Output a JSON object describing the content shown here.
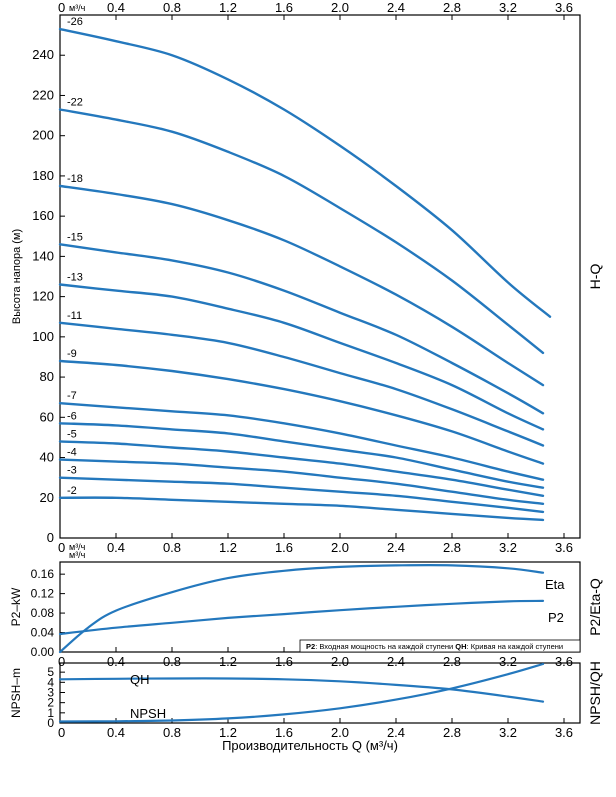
{
  "chart_data": [
    {
      "type": "line",
      "panel": "H-Q",
      "side_label": "H-Q",
      "ylabel": "Высота напора (м)",
      "x_unit_label": "м³/ч",
      "xticks": [
        "0",
        "0.4",
        "0.8",
        "1.2",
        "1.6",
        "2.0",
        "2.4",
        "2.8",
        "3.2",
        "3.6"
      ],
      "yticks": [
        "0",
        "20",
        "40",
        "60",
        "80",
        "100",
        "120",
        "140",
        "160",
        "180",
        "200",
        "220",
        "240"
      ],
      "xlim": [
        0,
        3.6
      ],
      "ylim": [
        0,
        260
      ],
      "grid": false,
      "series": [
        {
          "name": "-26",
          "x": [
            0,
            0.4,
            0.8,
            1.2,
            1.6,
            2.0,
            2.4,
            2.8,
            3.2,
            3.5
          ],
          "y": [
            253,
            247,
            240,
            228,
            213,
            195,
            175,
            153,
            127,
            110
          ]
        },
        {
          "name": "-22",
          "x": [
            0,
            0.4,
            0.8,
            1.2,
            1.6,
            2.0,
            2.4,
            2.8,
            3.2,
            3.45
          ],
          "y": [
            213,
            208,
            202,
            192,
            180,
            164,
            147,
            128,
            106,
            92
          ]
        },
        {
          "name": "-18",
          "x": [
            0,
            0.4,
            0.8,
            1.2,
            1.6,
            2.0,
            2.4,
            2.8,
            3.2,
            3.45
          ],
          "y": [
            175,
            171,
            166,
            158,
            148,
            135,
            121,
            105,
            87,
            76
          ]
        },
        {
          "name": "-15",
          "x": [
            0,
            0.4,
            0.8,
            1.2,
            1.6,
            2.0,
            2.4,
            2.8,
            3.2,
            3.45
          ],
          "y": [
            146,
            142,
            138,
            132,
            123,
            112,
            101,
            87,
            72,
            62
          ]
        },
        {
          "name": "-13",
          "x": [
            0,
            0.4,
            0.8,
            1.2,
            1.6,
            2.0,
            2.4,
            2.8,
            3.2,
            3.45
          ],
          "y": [
            126,
            123,
            120,
            114,
            107,
            97,
            87,
            76,
            62,
            54
          ]
        },
        {
          "name": "-11",
          "x": [
            0,
            0.4,
            0.8,
            1.2,
            1.6,
            2.0,
            2.4,
            2.8,
            3.2,
            3.45
          ],
          "y": [
            107,
            104,
            101,
            97,
            90,
            82,
            74,
            64,
            53,
            46
          ]
        },
        {
          "name": "-9",
          "x": [
            0,
            0.4,
            0.8,
            1.2,
            1.6,
            2.0,
            2.4,
            2.8,
            3.2,
            3.45
          ],
          "y": [
            88,
            86,
            83,
            79,
            74,
            68,
            61,
            53,
            43,
            37
          ]
        },
        {
          "name": "-7",
          "x": [
            0,
            0.4,
            0.8,
            1.2,
            1.6,
            2.0,
            2.4,
            2.8,
            3.2,
            3.45
          ],
          "y": [
            67,
            65,
            63,
            61,
            57,
            52,
            46,
            40,
            33,
            29
          ]
        },
        {
          "name": "-6",
          "x": [
            0,
            0.4,
            0.8,
            1.2,
            1.6,
            2.0,
            2.4,
            2.8,
            3.2,
            3.45
          ],
          "y": [
            57,
            56,
            54,
            52,
            48,
            44,
            40,
            34,
            28,
            25
          ]
        },
        {
          "name": "-5",
          "x": [
            0,
            0.4,
            0.8,
            1.2,
            1.6,
            2.0,
            2.4,
            2.8,
            3.2,
            3.45
          ],
          "y": [
            48,
            47,
            45,
            43,
            40,
            37,
            33,
            29,
            24,
            21
          ]
        },
        {
          "name": "-4",
          "x": [
            0,
            0.4,
            0.8,
            1.2,
            1.6,
            2.0,
            2.4,
            2.8,
            3.2,
            3.45
          ],
          "y": [
            39,
            38,
            37,
            35,
            33,
            30,
            27,
            23,
            19,
            17
          ]
        },
        {
          "name": "-3",
          "x": [
            0,
            0.4,
            0.8,
            1.2,
            1.6,
            2.0,
            2.4,
            2.8,
            3.2,
            3.45
          ],
          "y": [
            30,
            29,
            28,
            27,
            25,
            23,
            21,
            18,
            15,
            13
          ]
        },
        {
          "name": "-2",
          "x": [
            0,
            0.4,
            0.8,
            1.2,
            1.6,
            2.0,
            2.4,
            2.8,
            3.2,
            3.45
          ],
          "y": [
            20,
            20,
            19,
            18,
            17,
            16,
            14,
            12,
            10,
            9
          ]
        }
      ]
    },
    {
      "type": "line",
      "panel": "P2/Eta-Q",
      "side_label": "P2/Eta-Q",
      "ylabel": "P2–kW",
      "x_unit_label": "м³/ч",
      "xticks": [
        "0",
        "0.4",
        "0.8",
        "1.2",
        "1.6",
        "2.0",
        "2.4",
        "2.8",
        "3.2",
        "3.6"
      ],
      "yticks": [
        "0.00",
        "0.04",
        "0.08",
        "0.12",
        "0.16"
      ],
      "xlim": [
        0,
        3.6
      ],
      "ylim": [
        0,
        0.185
      ],
      "grid": false,
      "note_parts": [
        {
          "text": "P2",
          "bold": true
        },
        {
          "text": ": Входная мощность на каждой ступени ",
          "bold": false
        },
        {
          "text": "QH",
          "bold": true
        },
        {
          "text": ": Кривая на каждой ступени",
          "bold": false
        }
      ],
      "series": [
        {
          "name": "Eta",
          "x": [
            0,
            0.2,
            0.4,
            0.8,
            1.2,
            1.6,
            2.0,
            2.4,
            2.8,
            3.2,
            3.45
          ],
          "y": [
            0.0,
            0.05,
            0.085,
            0.123,
            0.152,
            0.167,
            0.175,
            0.178,
            0.178,
            0.172,
            0.163
          ]
        },
        {
          "name": "P2",
          "x": [
            0,
            0.4,
            0.8,
            1.2,
            1.6,
            2.0,
            2.4,
            2.8,
            3.2,
            3.45
          ],
          "y": [
            0.037,
            0.05,
            0.06,
            0.07,
            0.078,
            0.086,
            0.093,
            0.099,
            0.104,
            0.105
          ]
        }
      ]
    },
    {
      "type": "line",
      "panel": "NPSH/QH",
      "side_label": "NPSH/QH",
      "ylabel": "NPSH–m",
      "xlabel": "Производительность Q (м³/ч)",
      "xticks": [
        "0",
        "0.4",
        "0.8",
        "1.2",
        "1.6",
        "2.0",
        "2.4",
        "2.8",
        "3.2",
        "3.6"
      ],
      "yticks": [
        "0",
        "1",
        "2",
        "3",
        "4",
        "5"
      ],
      "xlim": [
        0,
        3.6
      ],
      "ylim": [
        0,
        5.9
      ],
      "grid": false,
      "series": [
        {
          "name": "QH",
          "x": [
            0,
            0.4,
            0.8,
            1.2,
            1.6,
            2.0,
            2.4,
            2.8,
            3.2,
            3.45
          ],
          "y": [
            4.3,
            4.35,
            4.38,
            4.38,
            4.3,
            4.1,
            3.75,
            3.3,
            2.6,
            2.1
          ]
        },
        {
          "name": "NPSH",
          "x": [
            0,
            0.4,
            0.8,
            1.2,
            1.6,
            2.0,
            2.4,
            2.8,
            3.2,
            3.45
          ],
          "y": [
            0.15,
            0.17,
            0.25,
            0.45,
            0.85,
            1.45,
            2.3,
            3.4,
            4.8,
            5.8
          ]
        }
      ]
    }
  ],
  "colors": {
    "curve": "#2478bd",
    "axis": "#000000",
    "text": "#000000"
  }
}
